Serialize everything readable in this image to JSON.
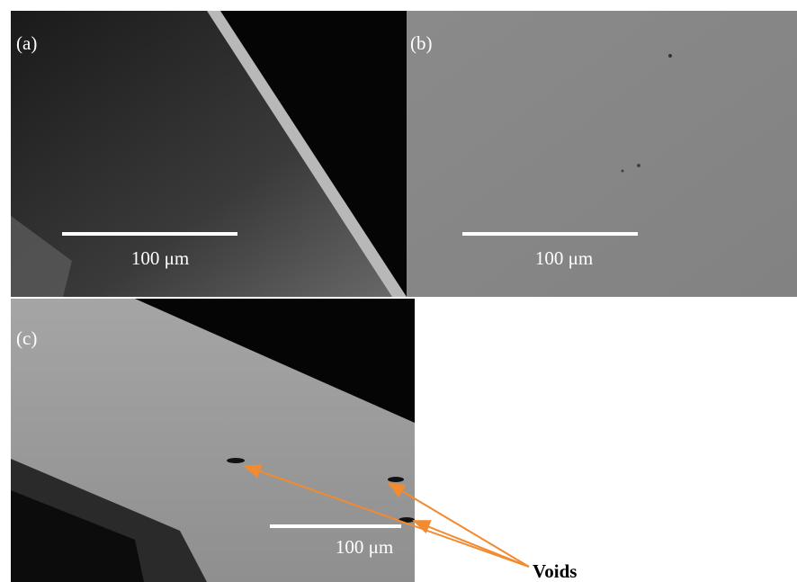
{
  "panels": [
    {
      "label": "(a)",
      "scale_bar": "100 μm"
    },
    {
      "label": "(b)",
      "scale_bar": "100 μm"
    },
    {
      "label": "(c)",
      "scale_bar": "100 μm"
    }
  ],
  "annotation": "Voids"
}
